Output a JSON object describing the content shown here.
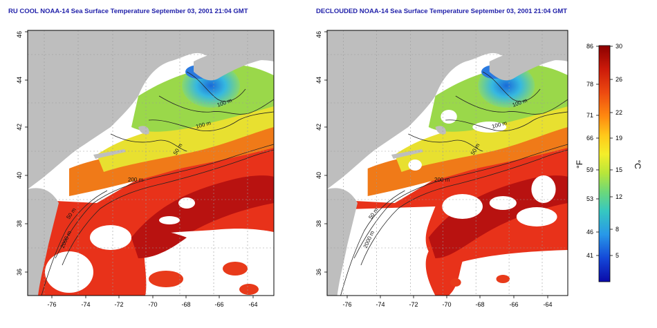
{
  "panels": [
    {
      "title": "RU COOL NOAA-14 Sea Surface Temperature September 03, 2001 21:04 GMT"
    },
    {
      "title": "DECLOUDED NOAA-14 Sea Surface Temperature September 03, 2001 21:04 GMT"
    }
  ],
  "axes": {
    "lon_ticks": [
      "-76",
      "-74",
      "-72",
      "-70",
      "-68",
      "-66",
      "-64"
    ],
    "lat_ticks": [
      "36",
      "38",
      "40",
      "42",
      "44",
      "46"
    ]
  },
  "contour_labels": [
    "100 m",
    "100 m",
    "50 m",
    "200 m",
    "50 m",
    "2000 m"
  ],
  "colorbar": {
    "fahrenheit_ticks": [
      "86",
      "78",
      "71",
      "66",
      "59",
      "53",
      "46",
      "41"
    ],
    "celsius_ticks": [
      "30",
      "26",
      "22",
      "19",
      "15",
      "12",
      "8",
      "5"
    ],
    "fahrenheit_unit": "°F",
    "celsius_unit": "°C",
    "colors": [
      "#8b0000",
      "#cc1a0a",
      "#ee4a10",
      "#ff8a10",
      "#ffc81a",
      "#f4ee2a",
      "#b8e63a",
      "#6cd87a",
      "#36c8c0",
      "#2898e8",
      "#1448d8",
      "#0a0aa8"
    ]
  },
  "map_colors": {
    "land": "#bebebe",
    "cloud": "#ffffff",
    "warm_deep": "#b01010",
    "warm": "#e8321a",
    "mid": "#f08a18",
    "cool": "#e8e02a",
    "cold": "#28a8e0"
  }
}
